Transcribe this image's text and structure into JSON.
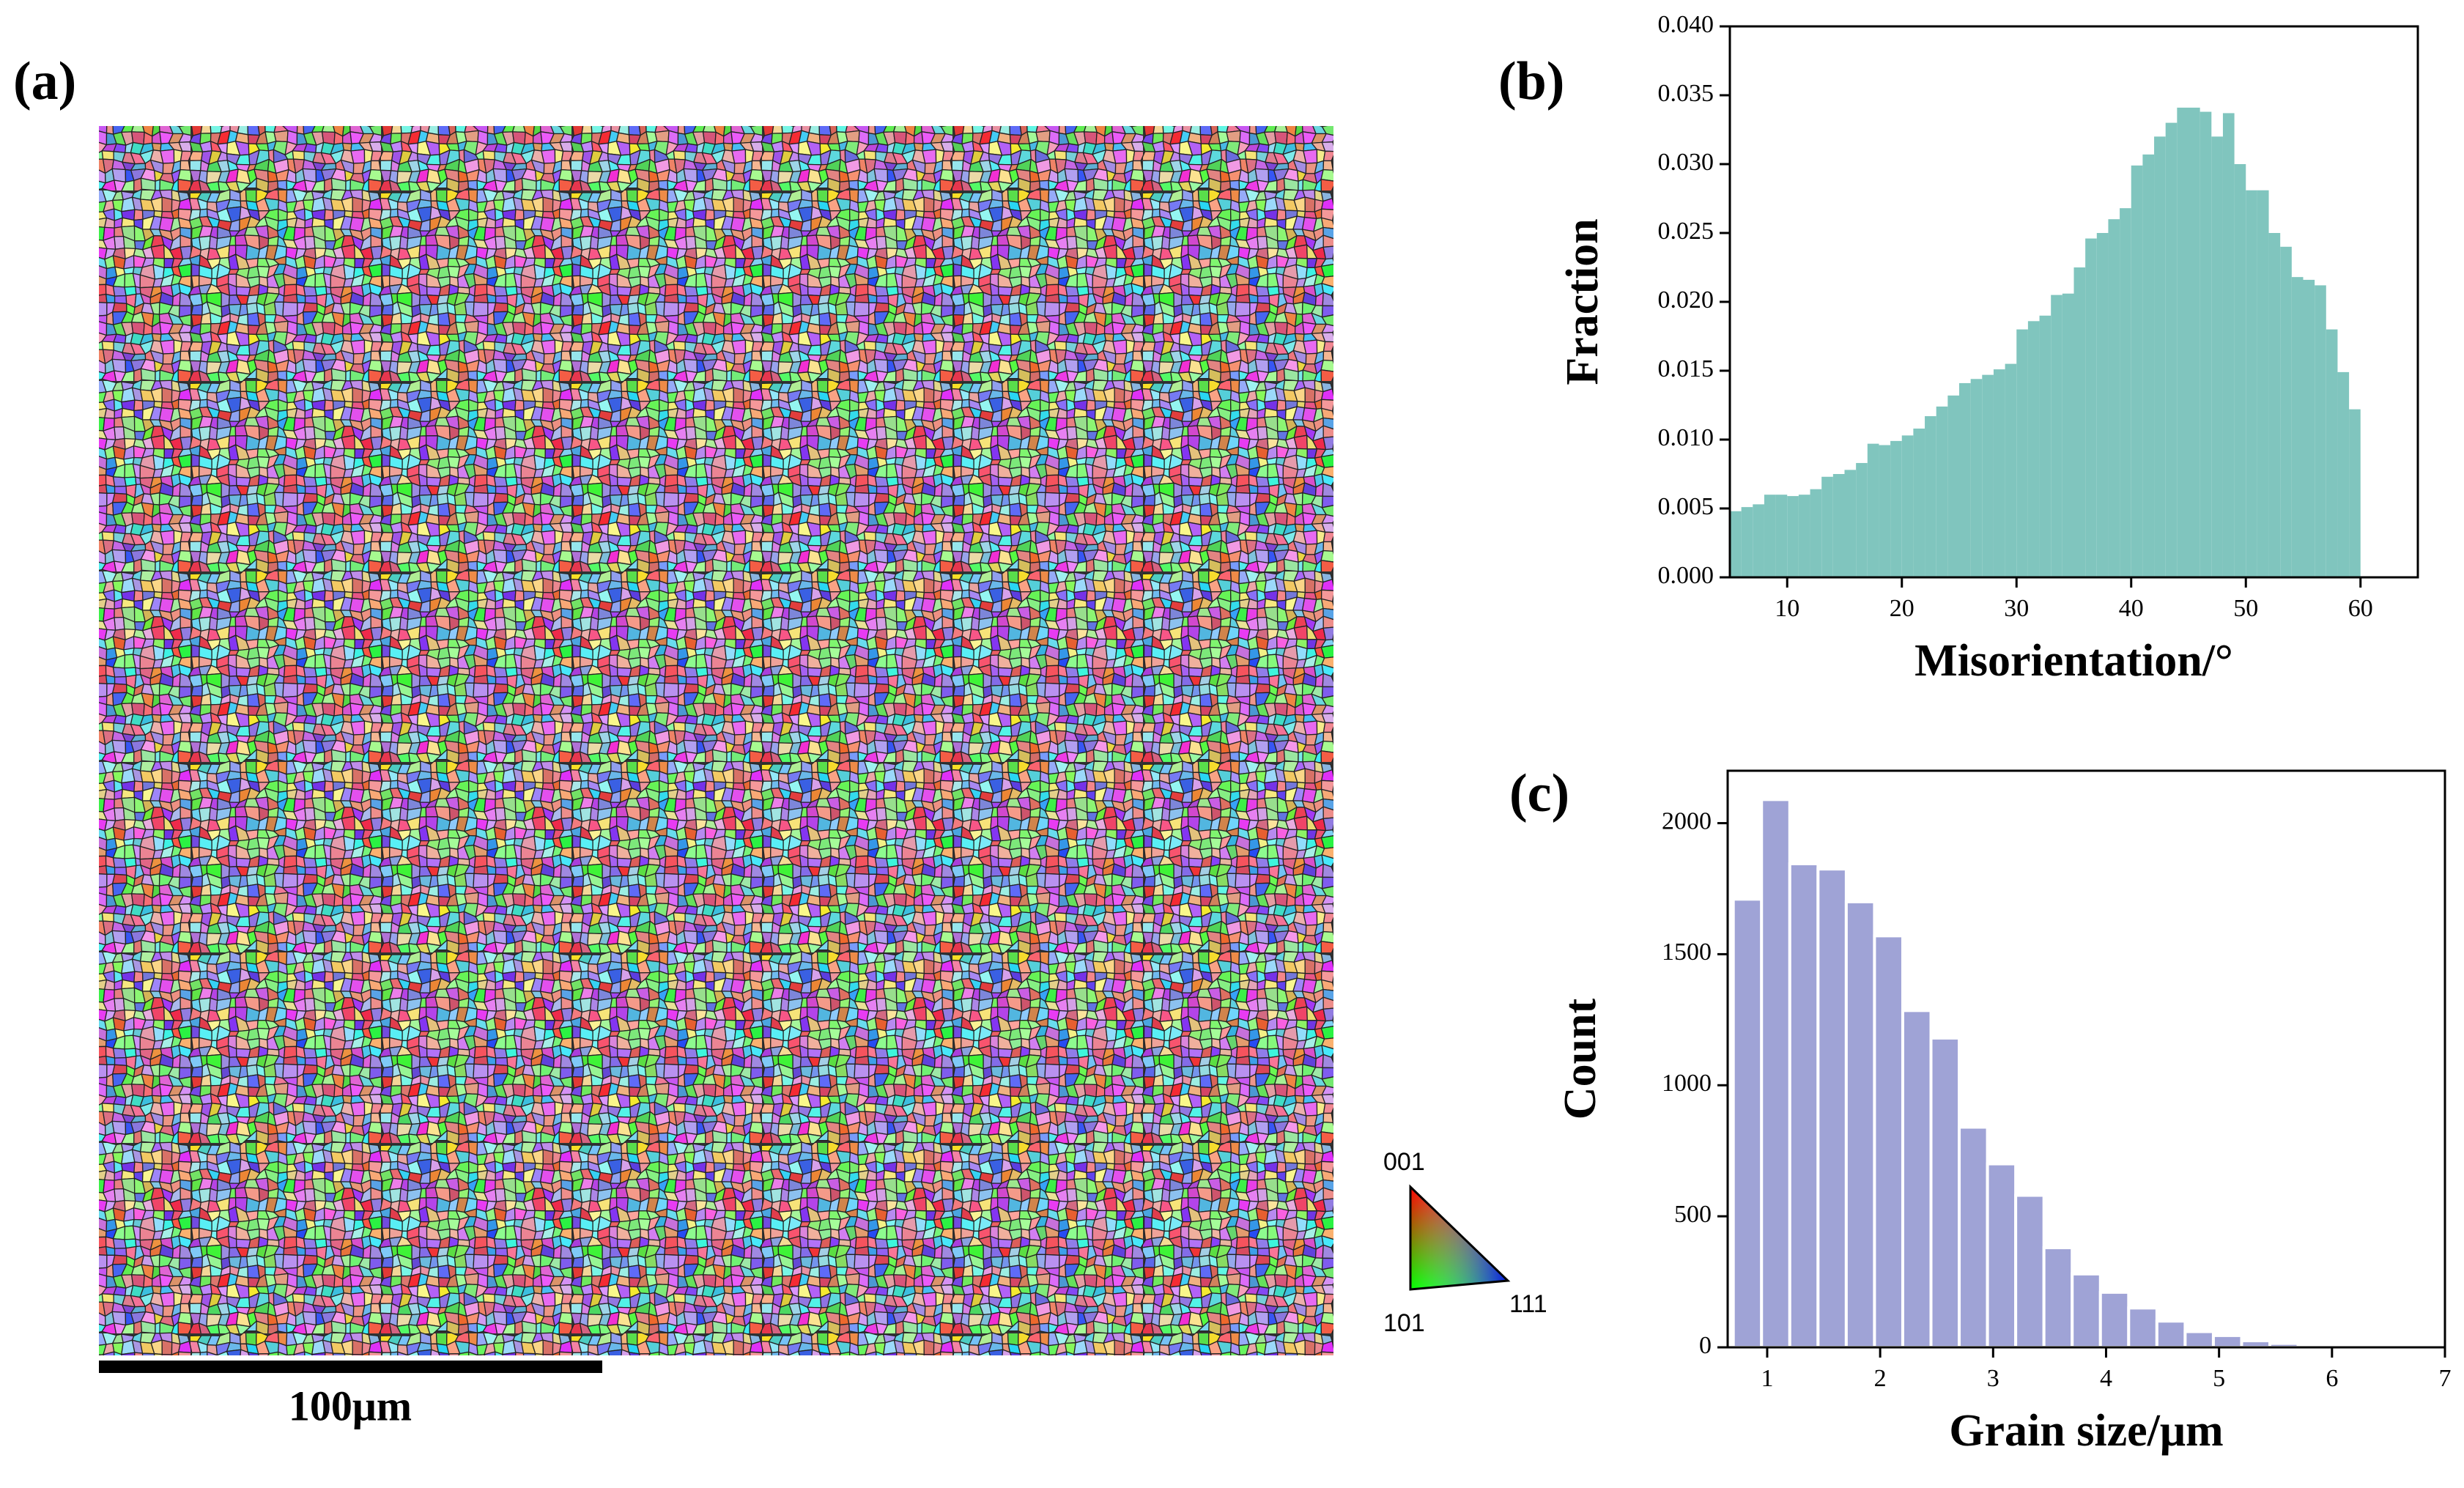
{
  "figure": {
    "panel_labels": [
      "(a)",
      "(b)",
      "(c)"
    ],
    "scale_bar": "100μm",
    "ipf_labels": [
      "001",
      "101",
      "111"
    ]
  },
  "chart_data": [
    {
      "type": "histogram",
      "x_label": "Misorientation/°",
      "y_label": "Fraction",
      "color": "#80c5be",
      "bins": [
        5,
        6,
        7,
        8,
        9,
        10,
        11,
        12,
        13,
        14,
        15,
        16,
        17,
        18,
        19,
        20,
        21,
        22,
        23,
        24,
        25,
        26,
        27,
        28,
        29,
        30,
        31,
        32,
        33,
        34,
        35,
        36,
        37,
        38,
        39,
        40,
        41,
        42,
        43,
        44,
        45,
        46,
        47,
        48,
        49,
        50,
        51,
        52,
        53,
        54,
        55,
        56,
        57,
        58,
        59,
        60
      ],
      "counts": [
        0.0048,
        0.0051,
        0.0053,
        0.006,
        0.006,
        0.0059,
        0.006,
        0.0064,
        0.0073,
        0.0075,
        0.0078,
        0.0083,
        0.0097,
        0.0096,
        0.0099,
        0.0103,
        0.0108,
        0.0117,
        0.0124,
        0.0132,
        0.0141,
        0.0144,
        0.0147,
        0.0151,
        0.0155,
        0.018,
        0.0186,
        0.019,
        0.0205,
        0.0206,
        0.0225,
        0.0246,
        0.025,
        0.026,
        0.0268,
        0.0299,
        0.0307,
        0.032,
        0.033,
        0.0341,
        0.0341,
        0.0338,
        0.032,
        0.0337,
        0.03,
        0.0281,
        0.0281,
        0.025,
        0.024,
        0.0218,
        0.0216,
        0.0212,
        0.018,
        0.0149,
        0.0122
      ],
      "xlim": [
        5,
        65
      ],
      "xticks": [
        10,
        20,
        30,
        40,
        50,
        60
      ],
      "ylim": [
        0,
        0.04
      ],
      "yticks": [
        {
          "value": 0,
          "label": "0.000"
        },
        {
          "value": 0.005,
          "label": "0.005"
        },
        {
          "value": 0.01,
          "label": "0.010"
        },
        {
          "value": 0.015,
          "label": "0.015"
        },
        {
          "value": 0.02,
          "label": "0.020"
        },
        {
          "value": 0.025,
          "label": "0.025"
        },
        {
          "value": 0.03,
          "label": "0.030"
        },
        {
          "value": 0.035,
          "label": "0.035"
        },
        {
          "value": 0.04,
          "label": "0.040"
        }
      ]
    },
    {
      "type": "histogram",
      "x_label": "Grain size/μm",
      "y_label": "Count",
      "color": "#9fa3d6",
      "bins": [
        0.7,
        0.95,
        1.2,
        1.45,
        1.7,
        1.95,
        2.2,
        2.45,
        2.7,
        2.95,
        3.2,
        3.45,
        3.7,
        3.95,
        4.2,
        4.45,
        4.7,
        4.95,
        5.2,
        5.45,
        5.7,
        5.95,
        6.2,
        6.45
      ],
      "counts": [
        1710,
        2090,
        1845,
        1825,
        1700,
        1570,
        1285,
        1180,
        840,
        700,
        580,
        380,
        280,
        210,
        150,
        100,
        60,
        45,
        25,
        15,
        8,
        5,
        3
      ],
      "xlim": [
        0.65,
        7
      ],
      "xticks": [
        1,
        2,
        3,
        4,
        5,
        6,
        7
      ],
      "ylim": [
        0,
        2200
      ],
      "yticks": [
        0,
        500,
        1000,
        1500,
        2000
      ]
    }
  ]
}
